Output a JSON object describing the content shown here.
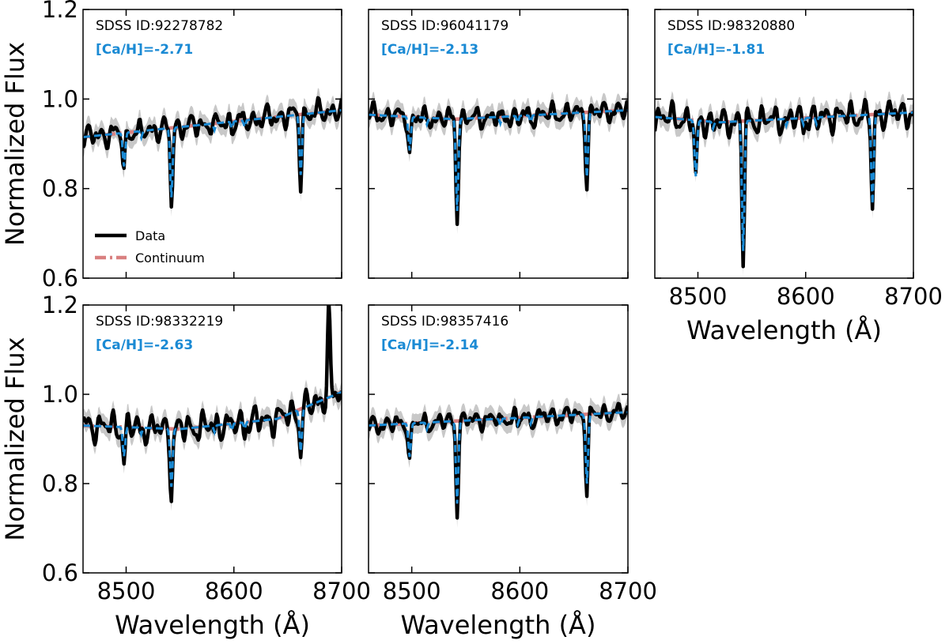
{
  "chart_data": {
    "type": "line",
    "figure_layout": "2 rows x 3 columns grid of spectra panels; bottom-right cell empty",
    "xlabel": "Wavelength (Å)",
    "ylabel": "Normalized Flux",
    "xlim": [
      8460,
      8700
    ],
    "ylim": [
      0.6,
      1.2
    ],
    "xticks": [
      8500,
      8600,
      8700
    ],
    "xticklabels": [
      "8500",
      "8600",
      "8700"
    ],
    "yticks": [
      0.6,
      0.8,
      1.0,
      1.2
    ],
    "yticklabels": [
      "0.6",
      "0.8",
      "1.0",
      "1.2"
    ],
    "colors": {
      "data": "#000000",
      "model": "#1a8ad4",
      "continuum": "#d98080",
      "band": "#c8c8c8",
      "ca_label": "#1a8ad4"
    },
    "legend": {
      "location": "lower-left of first panel",
      "entries": [
        {
          "label": "Data",
          "style": "solid black"
        },
        {
          "label": "Continuum",
          "style": "dash-dot salmon"
        }
      ]
    },
    "lines": {
      "Ca_II_triplet_A": [
        8498,
        8542,
        8662
      ],
      "weak_features_A": [
        8514,
        8582,
        8598,
        8610
      ]
    },
    "panels": [
      {
        "id_text": "SDSS ID:92278782",
        "ca_text": "[Ca/H]=-2.71",
        "continuum": [
          [
            8460,
            0.915
          ],
          [
            8700,
            0.975
          ]
        ],
        "line_depths_A": [
          [
            8498,
            0.075
          ],
          [
            8542,
            0.155
          ],
          [
            8662,
            0.135
          ]
        ],
        "noise_amplitude": 0.028,
        "seed": 11
      },
      {
        "id_text": "SDSS ID:96041179",
        "ca_text": "[Ca/H]=-2.13",
        "continuum": [
          [
            8460,
            0.965
          ],
          [
            8540,
            0.955
          ],
          [
            8700,
            0.975
          ]
        ],
        "line_depths_A": [
          [
            8498,
            0.075
          ],
          [
            8542,
            0.205
          ],
          [
            8662,
            0.145
          ]
        ],
        "noise_amplitude": 0.025,
        "seed": 23
      },
      {
        "id_text": "SDSS ID:98320880",
        "ca_text": "[Ca/H]=-1.81",
        "continuum": [
          [
            8460,
            0.96
          ],
          [
            8520,
            0.948
          ],
          [
            8700,
            0.97
          ]
        ],
        "line_depths_A": [
          [
            8498,
            0.125
          ],
          [
            8542,
            0.29
          ],
          [
            8662,
            0.2
          ]
        ],
        "noise_amplitude": 0.033,
        "seed": 37
      },
      {
        "id_text": "SDSS ID:98332219",
        "ca_text": "[Ca/H]=-2.63",
        "continuum": [
          [
            8460,
            0.93
          ],
          [
            8550,
            0.922
          ],
          [
            8640,
            0.945
          ],
          [
            8700,
            1.005
          ]
        ],
        "line_depths_A": [
          [
            8498,
            0.065
          ],
          [
            8542,
            0.13
          ],
          [
            8662,
            0.095
          ]
        ],
        "noise_amplitude": 0.035,
        "spike": [
          8688,
          1.19
        ],
        "seed": 51
      },
      {
        "id_text": "SDSS ID:98357416",
        "ca_text": "[Ca/H]=-2.14",
        "continuum": [
          [
            8460,
            0.93
          ],
          [
            8700,
            0.96
          ]
        ],
        "line_depths_A": [
          [
            8498,
            0.075
          ],
          [
            8542,
            0.185
          ],
          [
            8662,
            0.155
          ]
        ],
        "noise_amplitude": 0.022,
        "seed": 67
      }
    ]
  }
}
